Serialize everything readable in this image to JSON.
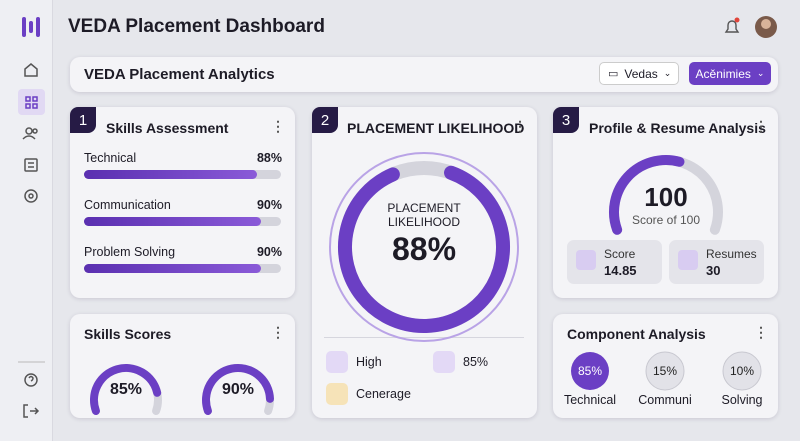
{
  "header": {
    "title": "VEDA Placement Dashboard"
  },
  "toolbar": {
    "title": "VEDA Placement Analytics",
    "filter": "Vedas",
    "button": "Acěnimies"
  },
  "skills_assessment": {
    "number": "1",
    "title": "Skills Assessment",
    "items": [
      {
        "name": "Technical",
        "value": 88,
        "value_label": "88%"
      },
      {
        "name": "Communication",
        "value": 90,
        "value_label": "90%"
      },
      {
        "name": "Problem Solving",
        "value": 90,
        "value_label": "90%"
      }
    ]
  },
  "placement": {
    "number": "2",
    "title": "PLACEMENT LIKELIHOOD",
    "caption": "PLACEMENT LIKELIHOOD",
    "value": 88,
    "value_label": "88%",
    "legend": [
      "High",
      "85%",
      "Cenerage"
    ]
  },
  "profile": {
    "number": "3",
    "title": "Profile & Resume Analysis",
    "score": 100,
    "caption": "Score of 100",
    "stats": [
      {
        "label": "Score",
        "value": 14.85
      },
      {
        "label": "Resumes",
        "value": 30
      }
    ]
  },
  "skills_scores": {
    "title": "Skills Scores",
    "gauges": [
      {
        "value": 85,
        "value_label": "85%"
      },
      {
        "value": 90,
        "value_label": "90%"
      }
    ]
  },
  "component_analysis": {
    "title": "Component Analysis",
    "items": [
      {
        "value": 85,
        "value_label": "85%",
        "name": "Technical"
      },
      {
        "value": 15,
        "value_label": "15%",
        "name": "Communi"
      },
      {
        "value": 10,
        "value_label": "10%",
        "name": "Solving"
      }
    ]
  }
}
